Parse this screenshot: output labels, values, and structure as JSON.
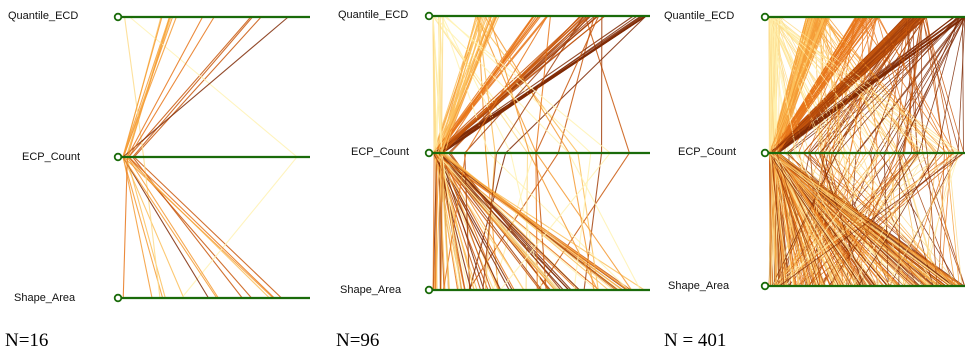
{
  "colors": {
    "axis": "#1a6b0a",
    "line_palette": [
      "#fff2b3",
      "#fddc8c",
      "#fbbf5c",
      "#f59b35",
      "#e8751a",
      "#c9580d",
      "#a3410c",
      "#7f2a06"
    ]
  },
  "axes": [
    "Quantile_ECD",
    "ECP_Count",
    "Shape_Area"
  ],
  "panels": [
    {
      "id": "n16",
      "caption": "N=16",
      "line_count": 16
    },
    {
      "id": "n96",
      "caption": "N=96",
      "line_count": 96
    },
    {
      "id": "n401",
      "caption": "N = 401",
      "line_count": 401
    }
  ]
}
